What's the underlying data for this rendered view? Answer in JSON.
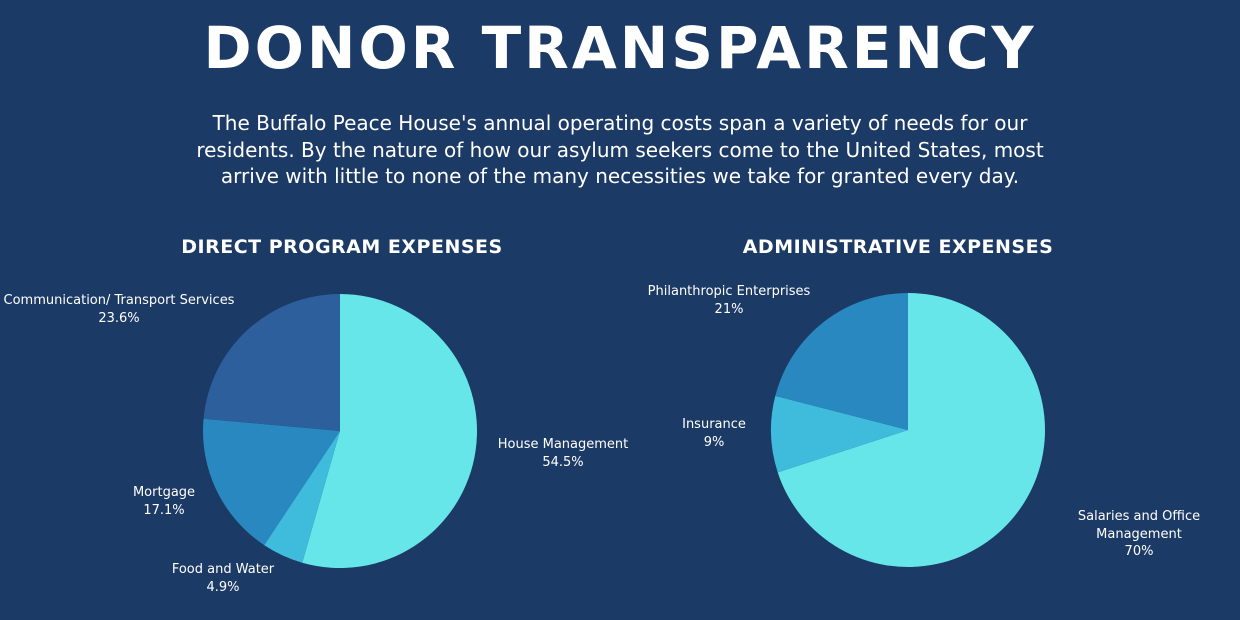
{
  "header": {
    "title": "DONOR TRANSPARENCY",
    "intro": "The Buffalo Peace House's annual operating costs span a variety of needs for our residents. By the nature of how our asylum seekers come to the United States, most arrive with little to none of the many necessities we take for granted every day."
  },
  "colors": {
    "background": "#1c3a66",
    "light_cyan": "#67e6ea",
    "mid_cyan": "#3fbbdb",
    "teal_blue": "#2a88c0",
    "dark_blue": "#2c5f9c"
  },
  "chart_data": [
    {
      "type": "pie",
      "title": "DIRECT PROGRAM EXPENSES",
      "slices": [
        {
          "name": "House Management",
          "value": 54.5,
          "label": "54.5%",
          "color": "#67e6ea"
        },
        {
          "name": "Food and Water",
          "value": 4.9,
          "label": "4.9%",
          "color": "#3fbbdb"
        },
        {
          "name": "Mortgage",
          "value": 17.1,
          "label": "17.1%",
          "color": "#2a88c0"
        },
        {
          "name": "Communication/ Transport Services",
          "value": 23.6,
          "label": "23.6%",
          "color": "#2c5f9c"
        }
      ]
    },
    {
      "type": "pie",
      "title": "ADMINISTRATIVE EXPENSES",
      "slices": [
        {
          "name": "Salaries and Office Management",
          "value": 70,
          "label": "70%",
          "color": "#67e6ea"
        },
        {
          "name": "Insurance",
          "value": 9,
          "label": "9%",
          "color": "#3fbbdb"
        },
        {
          "name": "Philanthropic Enterprises",
          "value": 21,
          "label": "21%",
          "color": "#2a88c0"
        }
      ]
    }
  ]
}
